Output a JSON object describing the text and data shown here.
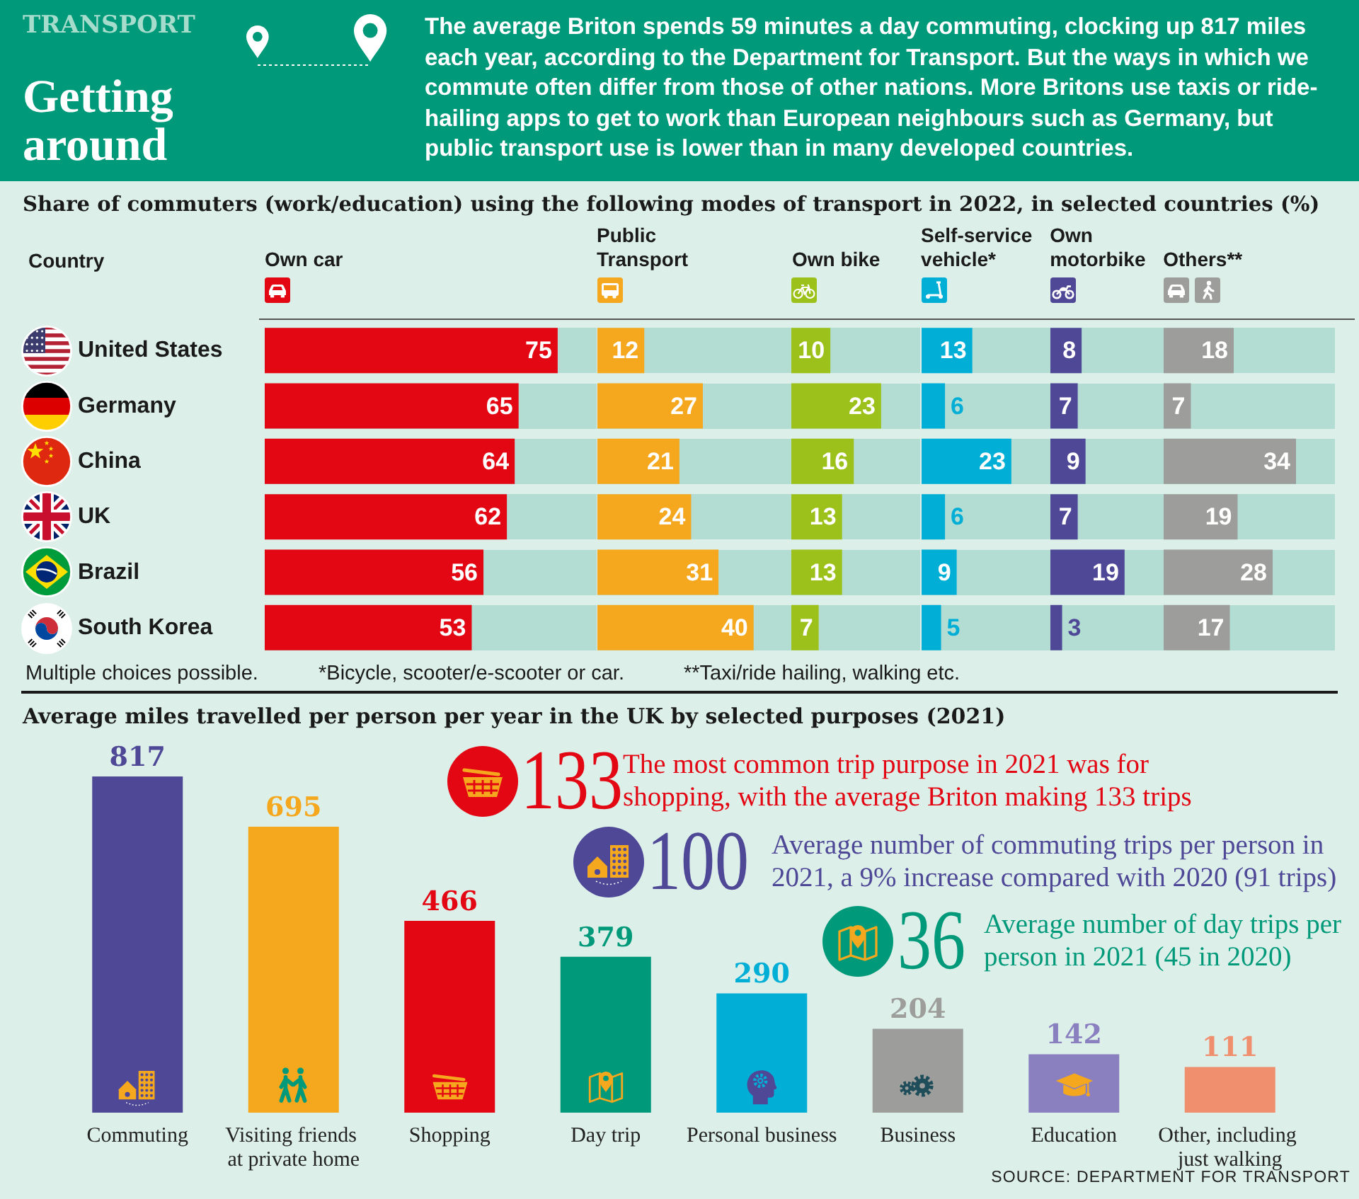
{
  "chart_data": [
    {
      "type": "other",
      "title": "Getting around",
      "subtitle": "The average Briton spends 59 minutes a day commuting, clocking up 817 miles each year, according to the Department for Transport. But the ways in which we commute often differ from those of other nations. More Britons use taxis or ride-hailing apps to get to work than European neighbours such as Germany, but public transport use is lower than in many developed countries.",
      "annotations": [
        "TRANSPORT"
      ]
    },
    {
      "type": "bar",
      "orientation": "horizontal",
      "title": "Share of commuters (work/education) using the following modes of transport in 2022, in selected countries (%)",
      "ylabel": "Country",
      "categories": [
        "United States",
        "Germany",
        "China",
        "UK",
        "Brazil",
        "South Korea"
      ],
      "series": [
        {
          "name": "Own car",
          "color": "#e30613",
          "values": [
            75,
            65,
            64,
            62,
            56,
            53
          ]
        }
      ],
      "data_labels": true,
      "tick_labels": "y",
      "annotations": [
        "Multiple choices possible.",
        "*Bicycle, scooter/e-scooter or car.",
        "**Taxi/ride hailing, walking etc."
      ]
    },
    {
      "type": "bar",
      "orientation": "horizontal",
      "categories": [
        "United States",
        "Germany",
        "China",
        "UK",
        "Brazil",
        "South Korea"
      ],
      "series": [
        {
          "name": "Public Transport",
          "color": "#f5a81e",
          "values": [
            12,
            27,
            21,
            24,
            31,
            40
          ]
        }
      ],
      "data_labels": true,
      "tick_labels": false
    },
    {
      "type": "bar",
      "orientation": "horizontal",
      "categories": [
        "United States",
        "Germany",
        "China",
        "UK",
        "Brazil",
        "South Korea"
      ],
      "series": [
        {
          "name": "Own bike",
          "color": "#9cc11a",
          "values": [
            10,
            23,
            16,
            13,
            13,
            7
          ]
        }
      ],
      "data_labels": true,
      "tick_labels": false
    },
    {
      "type": "bar",
      "orientation": "horizontal",
      "categories": [
        "United States",
        "Germany",
        "China",
        "UK",
        "Brazil",
        "South Korea"
      ],
      "series": [
        {
          "name": "Self-service vehicle*",
          "color": "#00aed6",
          "values": [
            13,
            6,
            23,
            6,
            9,
            5
          ]
        }
      ],
      "data_labels": true,
      "tick_labels": false
    },
    {
      "type": "bar",
      "orientation": "horizontal",
      "categories": [
        "United States",
        "Germany",
        "China",
        "UK",
        "Brazil",
        "South Korea"
      ],
      "series": [
        {
          "name": "Own motorbike",
          "color": "#4e4897",
          "values": [
            8,
            7,
            9,
            7,
            19,
            3
          ]
        }
      ],
      "data_labels": true,
      "tick_labels": false
    },
    {
      "type": "bar",
      "orientation": "horizontal",
      "categories": [
        "United States",
        "Germany",
        "China",
        "UK",
        "Brazil",
        "South Korea"
      ],
      "series": [
        {
          "name": "Others**",
          "color": "#9d9d9c",
          "values": [
            18,
            7,
            34,
            19,
            28,
            17
          ]
        }
      ],
      "data_labels": true,
      "tick_labels": false
    },
    {
      "type": "bar",
      "title": "Average miles travelled per person per year in the UK by selected purposes (2021)",
      "categories": [
        "Commuting",
        "Visiting friends at private home",
        "Shopping",
        "Day trip",
        "Personal business",
        "Business",
        "Education",
        "Other, including just walking"
      ],
      "values": [
        817,
        695,
        466,
        379,
        290,
        204,
        142,
        111
      ],
      "colors": [
        "#4e4897",
        "#f5a81e",
        "#e30613",
        "#009a7a",
        "#00aed6",
        "#9d9d9c",
        "#8a80c0",
        "#f08f6e"
      ],
      "data_labels": true,
      "annotations": [
        "133",
        "The most common trip purpose in 2021 was for shopping, with the average Briton making 133 trips",
        "100",
        "Average number of commuting trips per person in 2021, a 9% increase compared with 2020 (91 trips)",
        "36",
        "Average number of day trips per person in 2021 (45 in 2020)",
        "SOURCE: DEPARTMENT FOR TRANSPORT"
      ]
    }
  ]
}
